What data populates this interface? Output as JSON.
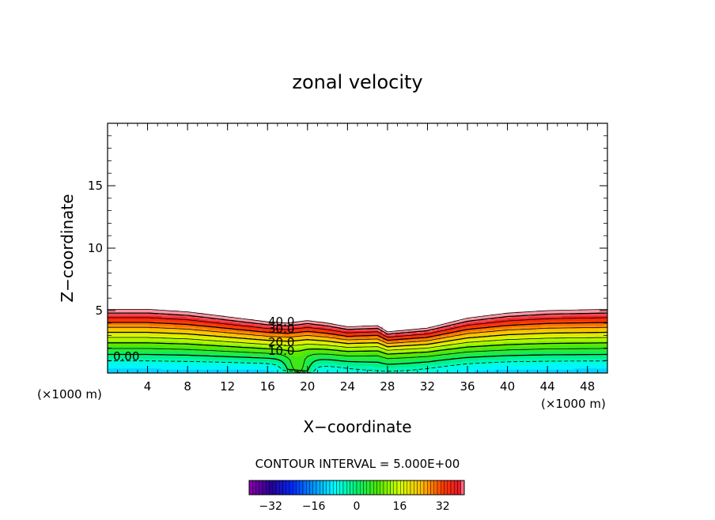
{
  "chart_data": {
    "type": "contour",
    "title": "zonal velocity",
    "xlabel": "X−coordinate",
    "ylabel": "Z−coordinate",
    "x_unit": "(×1000 m)",
    "x_unit_right": "(×1000 m)",
    "xlim": [
      0,
      50
    ],
    "ylim": [
      0,
      20
    ],
    "x_ticks": [
      "4",
      "8",
      "12",
      "16",
      "20",
      "24",
      "28",
      "32",
      "36",
      "40",
      "44",
      "48"
    ],
    "y_ticks": [
      "5",
      "10",
      "15"
    ],
    "contour_interval_text": "CONTOUR INTERVAL = 5.000E+00",
    "contour_labels": [
      "40.0",
      "30.0",
      "20.0",
      "10.0",
      "0.00"
    ],
    "colorbar": {
      "range": [
        -40,
        40
      ],
      "tick_labels": [
        "−32",
        "−16",
        "0",
        "16",
        "32"
      ],
      "tick_values": [
        -32,
        -16,
        0,
        16,
        32
      ]
    },
    "top_boundary_points": [
      {
        "x": 0,
        "z": 5.1
      },
      {
        "x": 4,
        "z": 5.1
      },
      {
        "x": 8,
        "z": 4.9
      },
      {
        "x": 12,
        "z": 4.5
      },
      {
        "x": 16,
        "z": 4.1
      },
      {
        "x": 18,
        "z": 4.0
      },
      {
        "x": 20,
        "z": 4.2
      },
      {
        "x": 22,
        "z": 4.0
      },
      {
        "x": 24,
        "z": 3.7
      },
      {
        "x": 27,
        "z": 3.8
      },
      {
        "x": 28,
        "z": 3.3
      },
      {
        "x": 32,
        "z": 3.6
      },
      {
        "x": 36,
        "z": 4.4
      },
      {
        "x": 40,
        "z": 4.8
      },
      {
        "x": 44,
        "z": 5.0
      },
      {
        "x": 50,
        "z": 5.1
      }
    ]
  }
}
